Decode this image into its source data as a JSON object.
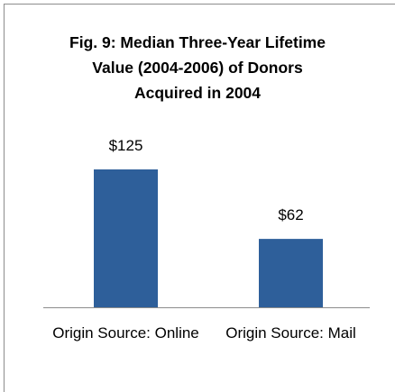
{
  "chart_data": {
    "type": "bar",
    "title": "Fig. 9: Median Three-Year Lifetime Value (2004-2006) of Donors Acquired in 2004",
    "categories": [
      "Origin Source: Online",
      "Origin Source: Mail"
    ],
    "values": [
      125,
      62
    ],
    "value_labels": [
      "$125",
      "$62"
    ],
    "color": "#2e5f9a"
  }
}
